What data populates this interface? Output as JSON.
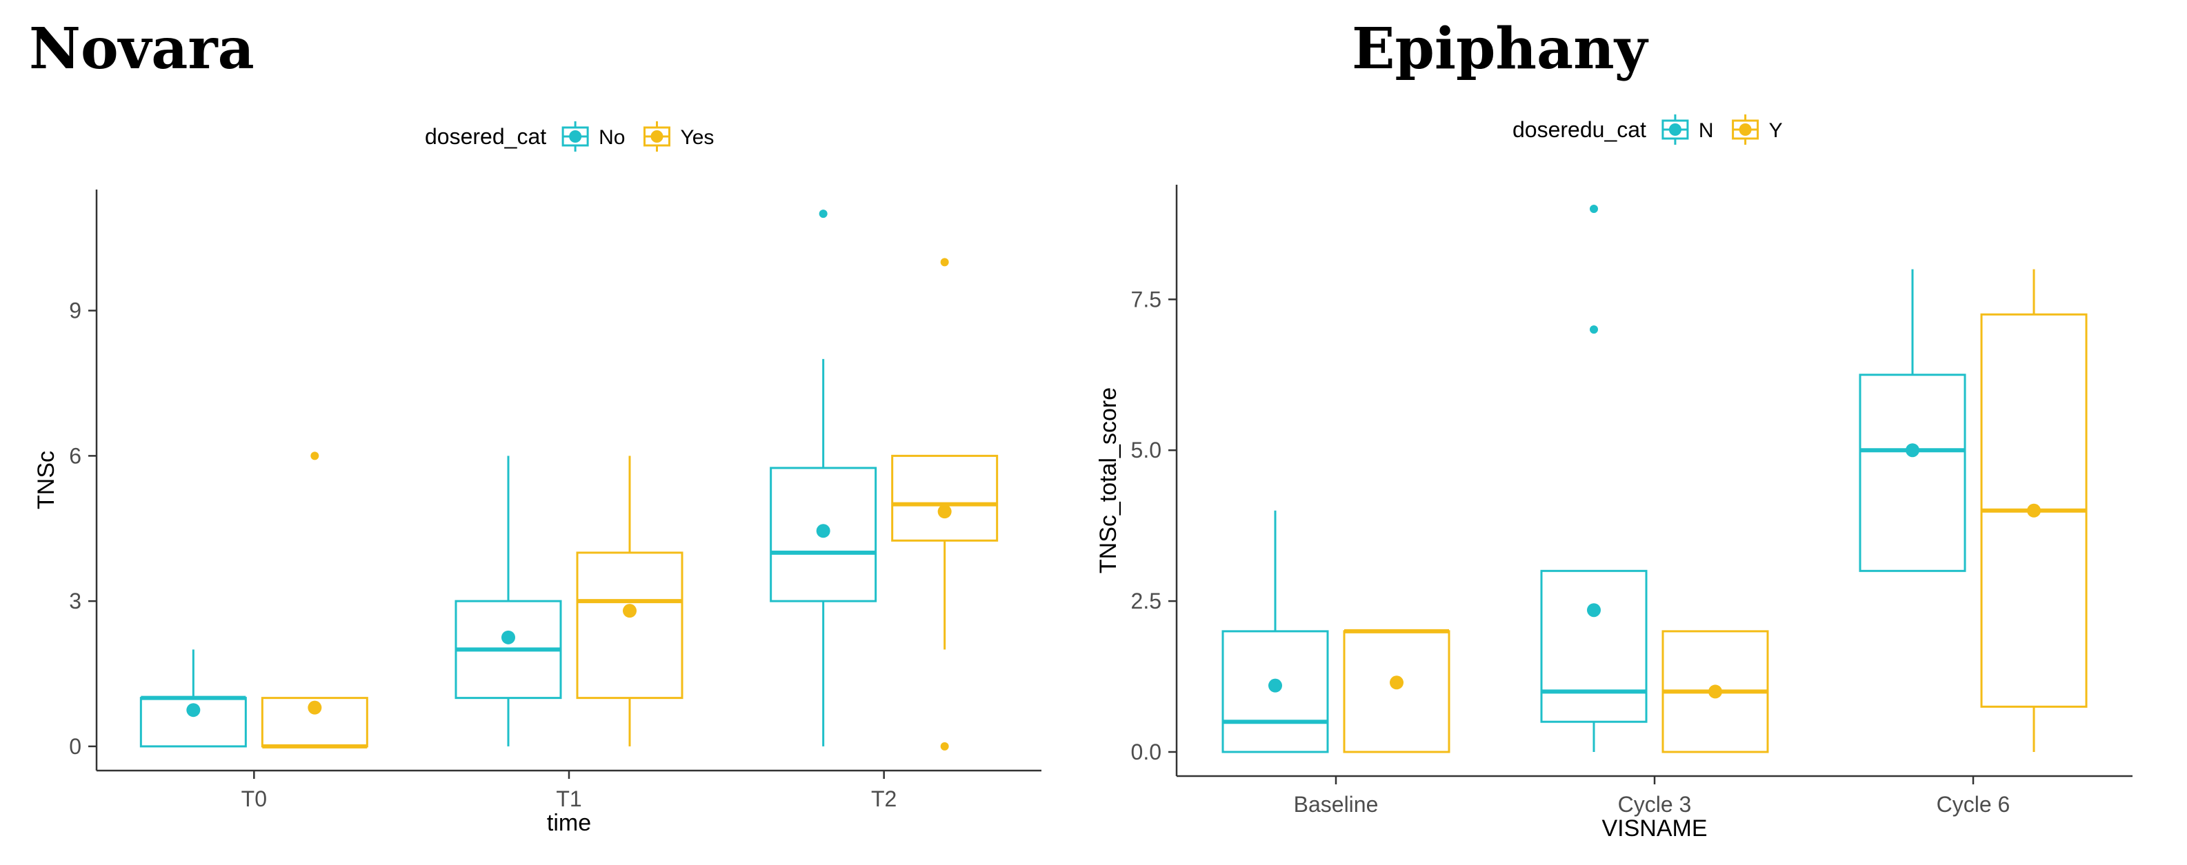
{
  "colors": {
    "no": "#1FBFC9",
    "yes": "#F4BC17",
    "axis": "#333333",
    "text": "#000000"
  },
  "panels": [
    {
      "title": "Novara"
    },
    {
      "title": "Epiphany"
    }
  ],
  "chart_data": [
    {
      "type": "box",
      "title": "Novara",
      "xlabel": "time",
      "ylabel": "TNSc",
      "ylim": [
        -0.5,
        11.5
      ],
      "yticks": [
        0,
        3,
        6,
        9
      ],
      "ytick_labels": [
        "0",
        "3",
        "6",
        "9"
      ],
      "categories": [
        "T0",
        "T1",
        "T2"
      ],
      "legend": {
        "title": "dosered_cat",
        "position": "top",
        "entries": [
          "No",
          "Yes"
        ]
      },
      "series": [
        {
          "name": "No",
          "color": "#1FBFC9",
          "boxes": [
            {
              "category": "T0",
              "q1": 0,
              "median": 1,
              "q3": 1,
              "whisker_low": 0,
              "whisker_high": 2,
              "mean": 0.75,
              "outliers": []
            },
            {
              "category": "T1",
              "q1": 1,
              "median": 2,
              "q3": 3,
              "whisker_low": 0,
              "whisker_high": 6,
              "mean": 2.25,
              "outliers": []
            },
            {
              "category": "T2",
              "q1": 3,
              "median": 4,
              "q3": 5.75,
              "whisker_low": 0,
              "whisker_high": 8,
              "mean": 4.45,
              "outliers": [
                11
              ]
            }
          ]
        },
        {
          "name": "Yes",
          "color": "#F4BC17",
          "boxes": [
            {
              "category": "T0",
              "q1": 0,
              "median": 0,
              "q3": 1,
              "whisker_low": 0,
              "whisker_high": 1,
              "mean": 0.8,
              "outliers": [
                6
              ]
            },
            {
              "category": "T1",
              "q1": 1,
              "median": 3,
              "q3": 4,
              "whisker_low": 0,
              "whisker_high": 6,
              "mean": 2.8,
              "outliers": []
            },
            {
              "category": "T2",
              "q1": 4.25,
              "median": 5,
              "q3": 6,
              "whisker_low": 2,
              "whisker_high": 6,
              "mean": 4.85,
              "outliers": [
                10,
                0
              ]
            }
          ]
        }
      ]
    },
    {
      "type": "box",
      "title": "Epiphany",
      "xlabel": "VISNAME",
      "ylabel": "TNSc_total_score",
      "ylim": [
        -0.4,
        9.4
      ],
      "yticks": [
        0,
        2.5,
        5,
        7.5
      ],
      "ytick_labels": [
        "0.0",
        "2.5",
        "5.0",
        "7.5"
      ],
      "categories": [
        "Baseline",
        "Cycle 3",
        "Cycle 6"
      ],
      "legend": {
        "title": "doseredu_cat",
        "position": "top",
        "entries": [
          "N",
          "Y"
        ]
      },
      "series": [
        {
          "name": "N",
          "color": "#1FBFC9",
          "boxes": [
            {
              "category": "Baseline",
              "q1": 0,
              "median": 0.5,
              "q3": 2,
              "whisker_low": 0,
              "whisker_high": 4,
              "mean": 1.1,
              "outliers": []
            },
            {
              "category": "Cycle 3",
              "q1": 0.5,
              "median": 1,
              "q3": 3,
              "whisker_low": 0,
              "whisker_high": 3,
              "mean": 2.35,
              "outliers": [
                9,
                7
              ]
            },
            {
              "category": "Cycle 6",
              "q1": 3,
              "median": 5,
              "q3": 6.25,
              "whisker_low": 3,
              "whisker_high": 8,
              "mean": 5,
              "outliers": []
            }
          ]
        },
        {
          "name": "Y",
          "color": "#F4BC17",
          "boxes": [
            {
              "category": "Baseline",
              "q1": 0,
              "median": 2,
              "q3": 2,
              "whisker_low": 0,
              "whisker_high": 2,
              "mean": 1.15,
              "outliers": []
            },
            {
              "category": "Cycle 3",
              "q1": 0,
              "median": 1,
              "q3": 2,
              "whisker_low": 0,
              "whisker_high": 2,
              "mean": 1,
              "outliers": []
            },
            {
              "category": "Cycle 6",
              "q1": 0.75,
              "median": 4,
              "q3": 7.25,
              "whisker_low": 0,
              "whisker_high": 8,
              "mean": 4,
              "outliers": []
            }
          ]
        }
      ]
    }
  ]
}
